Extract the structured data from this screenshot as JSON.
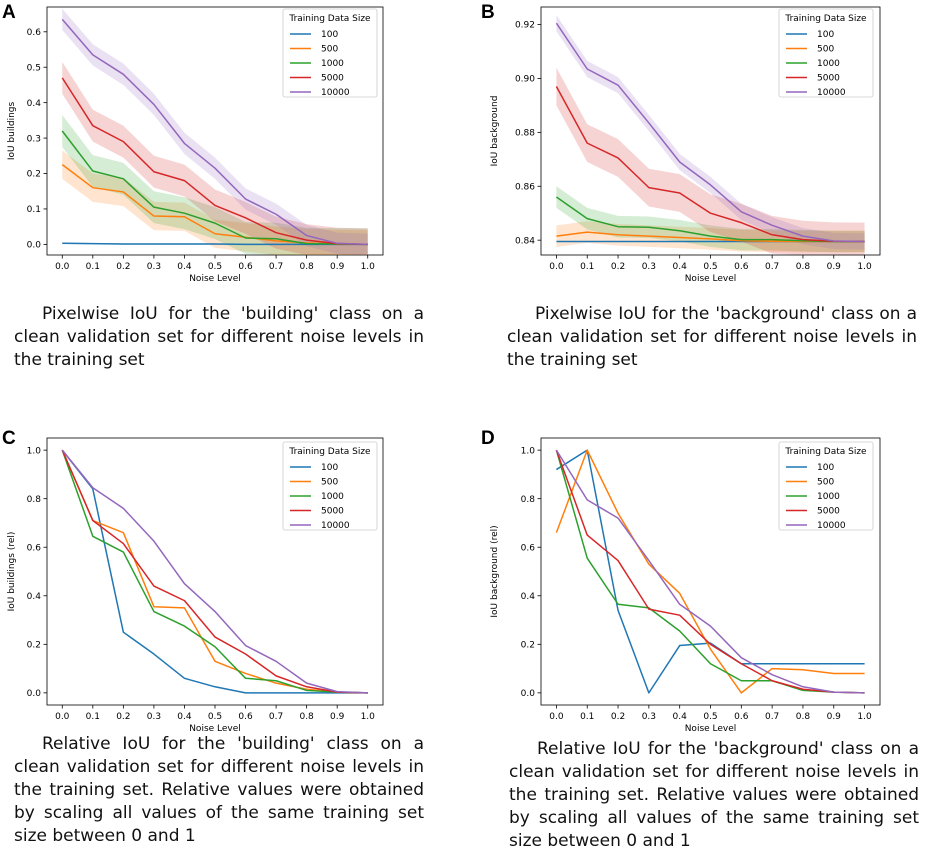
{
  "captions": {
    "A": "Pixelwise IoU for the 'building' class on a clean validation set for different noise levels in the training set",
    "B": "Pixelwise IoU for the 'background' class on a clean validation set for different noise levels in the training set",
    "C": "Relative IoU for the 'building' class on a clean validation set for different noise levels in the training set. Relative values were obtained by scaling all values of the same training set size between 0 and 1",
    "D": "Relative IoU for the 'background' class on a clean validation set for different noise levels in the training set. Relative values were obtained by scaling all values of the same training set size between 0 and 1"
  },
  "colors": {
    "100": "#1f77b4",
    "500": "#ff7f0e",
    "1000": "#2ca02c",
    "5000": "#d62728",
    "10000": "#9467bd"
  },
  "chart_data": [
    {
      "id": "A",
      "panel_label": "A",
      "type": "line",
      "xlabel": "Noise Level",
      "ylabel": "IoU buildings",
      "ylim": [
        -0.03,
        0.67
      ],
      "yticks": [
        "0.0",
        "0.1",
        "0.2",
        "0.3",
        "0.4",
        "0.5",
        "0.6"
      ],
      "xticks": [
        "0.0",
        "0.1",
        "0.2",
        "0.3",
        "0.4",
        "0.5",
        "0.6",
        "0.7",
        "0.8",
        "0.9",
        "1.0"
      ],
      "x": [
        0.0,
        0.1,
        0.2,
        0.3,
        0.4,
        0.5,
        0.6,
        0.7,
        0.8,
        0.9,
        1.0
      ],
      "legend_title": "Training Data Size",
      "series": [
        {
          "name": "100",
          "values": [
            0.003,
            0.002,
            0.001,
            0.001,
            0.001,
            0.001,
            0.0,
            0.0,
            0.0,
            0.0,
            0.0
          ],
          "band": 0.002
        },
        {
          "name": "500",
          "values": [
            0.225,
            0.16,
            0.148,
            0.08,
            0.078,
            0.03,
            0.02,
            0.01,
            0.004,
            0.001,
            0.0
          ],
          "band": 0.04
        },
        {
          "name": "1000",
          "values": [
            0.32,
            0.207,
            0.185,
            0.105,
            0.088,
            0.06,
            0.018,
            0.016,
            0.002,
            0.001,
            0.0
          ],
          "band": 0.045
        },
        {
          "name": "5000",
          "values": [
            0.47,
            0.335,
            0.29,
            0.205,
            0.18,
            0.11,
            0.075,
            0.033,
            0.012,
            0.002,
            0.0
          ],
          "band": 0.045
        },
        {
          "name": "10000",
          "values": [
            0.635,
            0.535,
            0.48,
            0.395,
            0.285,
            0.215,
            0.128,
            0.085,
            0.025,
            0.003,
            0.0
          ],
          "band": 0.03
        }
      ]
    },
    {
      "id": "B",
      "panel_label": "B",
      "type": "line",
      "xlabel": "Noise Level",
      "ylabel": "IoU background",
      "ylim": [
        0.8345,
        0.9265
      ],
      "yticks": [
        "0.84",
        "0.86",
        "0.88",
        "0.90",
        "0.92"
      ],
      "xticks": [
        "0.0",
        "0.1",
        "0.2",
        "0.3",
        "0.4",
        "0.5",
        "0.6",
        "0.7",
        "0.8",
        "0.9",
        "1.0"
      ],
      "x": [
        0.0,
        0.1,
        0.2,
        0.3,
        0.4,
        0.5,
        0.6,
        0.7,
        0.8,
        0.9,
        1.0
      ],
      "legend_title": "Training Data Size",
      "series": [
        {
          "name": "100",
          "values": [
            0.8395,
            0.8395,
            0.8395,
            0.8395,
            0.8395,
            0.8395,
            0.8395,
            0.8395,
            0.8395,
            0.8395,
            0.8395
          ],
          "band": 0.0002
        },
        {
          "name": "500",
          "values": [
            0.8415,
            0.843,
            0.842,
            0.8415,
            0.841,
            0.8405,
            0.8398,
            0.8396,
            0.8395,
            0.8395,
            0.8395
          ],
          "band": 0.004
        },
        {
          "name": "1000",
          "values": [
            0.856,
            0.848,
            0.845,
            0.8448,
            0.8435,
            0.8415,
            0.8402,
            0.8402,
            0.8398,
            0.8395,
            0.8395
          ],
          "band": 0.004
        },
        {
          "name": "5000",
          "values": [
            0.897,
            0.876,
            0.8705,
            0.8595,
            0.8575,
            0.85,
            0.8465,
            0.842,
            0.8402,
            0.8396,
            0.8395
          ],
          "band": 0.007
        },
        {
          "name": "10000",
          "values": [
            0.9205,
            0.9035,
            0.8975,
            0.8835,
            0.869,
            0.8605,
            0.8505,
            0.8455,
            0.8415,
            0.8397,
            0.8395
          ],
          "band": 0.003
        }
      ]
    },
    {
      "id": "C",
      "panel_label": "C",
      "type": "line",
      "xlabel": "Noise Level",
      "ylabel": "IoU buildings (rel)",
      "ylim": [
        -0.05,
        1.05
      ],
      "yticks": [
        "0.0",
        "0.2",
        "0.4",
        "0.6",
        "0.8",
        "1.0"
      ],
      "xticks": [
        "0.0",
        "0.1",
        "0.2",
        "0.3",
        "0.4",
        "0.5",
        "0.6",
        "0.7",
        "0.8",
        "0.9",
        "1.0"
      ],
      "x": [
        0.0,
        0.1,
        0.2,
        0.3,
        0.4,
        0.5,
        0.6,
        0.7,
        0.8,
        0.9,
        1.0
      ],
      "legend_title": "Training Data Size",
      "series": [
        {
          "name": "100",
          "values": [
            1.0,
            0.84,
            0.25,
            0.16,
            0.06,
            0.025,
            0.0,
            0.0,
            0.0,
            0.0,
            0.0
          ]
        },
        {
          "name": "500",
          "values": [
            1.0,
            0.71,
            0.66,
            0.355,
            0.35,
            0.13,
            0.08,
            0.04,
            0.015,
            0.003,
            0.0
          ]
        },
        {
          "name": "1000",
          "values": [
            1.0,
            0.645,
            0.58,
            0.335,
            0.275,
            0.19,
            0.06,
            0.05,
            0.01,
            0.003,
            0.0
          ]
        },
        {
          "name": "5000",
          "values": [
            1.0,
            0.71,
            0.615,
            0.44,
            0.38,
            0.23,
            0.16,
            0.07,
            0.025,
            0.003,
            0.0
          ]
        },
        {
          "name": "10000",
          "values": [
            1.0,
            0.845,
            0.76,
            0.625,
            0.45,
            0.335,
            0.195,
            0.13,
            0.04,
            0.005,
            0.0
          ]
        }
      ]
    },
    {
      "id": "D",
      "panel_label": "D",
      "type": "line",
      "xlabel": "Noise Level",
      "ylabel": "IoU background (rel)",
      "ylim": [
        -0.05,
        1.05
      ],
      "yticks": [
        "0.0",
        "0.2",
        "0.4",
        "0.6",
        "0.8",
        "1.0"
      ],
      "xticks": [
        "0.0",
        "0.1",
        "0.2",
        "0.3",
        "0.4",
        "0.5",
        "0.6",
        "0.7",
        "0.8",
        "0.9",
        "1.0"
      ],
      "x": [
        0.0,
        0.1,
        0.2,
        0.3,
        0.4,
        0.5,
        0.6,
        0.7,
        0.8,
        0.9,
        1.0
      ],
      "legend_title": "Training Data Size",
      "series": [
        {
          "name": "100",
          "values": [
            0.92,
            1.0,
            0.34,
            0.0,
            0.195,
            0.205,
            0.12,
            0.12,
            0.12,
            0.12,
            0.12
          ]
        },
        {
          "name": "500",
          "values": [
            0.66,
            1.0,
            0.74,
            0.53,
            0.41,
            0.18,
            0.0,
            0.1,
            0.095,
            0.08,
            0.08
          ]
        },
        {
          "name": "1000",
          "values": [
            1.0,
            0.555,
            0.365,
            0.35,
            0.255,
            0.12,
            0.05,
            0.05,
            0.01,
            0.003,
            0.0
          ]
        },
        {
          "name": "5000",
          "values": [
            1.0,
            0.65,
            0.545,
            0.345,
            0.32,
            0.2,
            0.12,
            0.05,
            0.015,
            0.003,
            0.0
          ]
        },
        {
          "name": "10000",
          "values": [
            1.0,
            0.795,
            0.72,
            0.545,
            0.365,
            0.275,
            0.145,
            0.075,
            0.025,
            0.003,
            0.0
          ]
        }
      ]
    }
  ]
}
